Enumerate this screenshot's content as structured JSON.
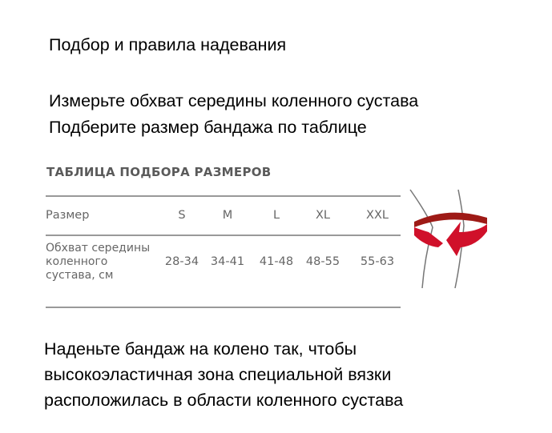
{
  "heading": "Подбор и правила надевания",
  "instructions": [
    "Измерьте обхват середины коленного сустава",
    "Подберите размер бандажа по таблице"
  ],
  "table": {
    "title": "ТАБЛИЦА ПОДБОРА РАЗМЕРОВ",
    "header_label": "Размер",
    "sizes": [
      "S",
      "M",
      "L",
      "XL",
      "XXL"
    ],
    "row_label": [
      "Обхват середины",
      "коленного",
      "сустава, см"
    ],
    "ranges": [
      "28-34",
      "34-41",
      "41-48",
      "48-55",
      "55-63"
    ]
  },
  "illustration": {
    "icon": "knee-measure-icon",
    "accent": "#d0102a"
  },
  "footer": [
    "Наденьте бандаж на колено так, чтобы",
    "высокоэластичная зона специальной вязки",
    "расположилась в области коленного сустава"
  ]
}
